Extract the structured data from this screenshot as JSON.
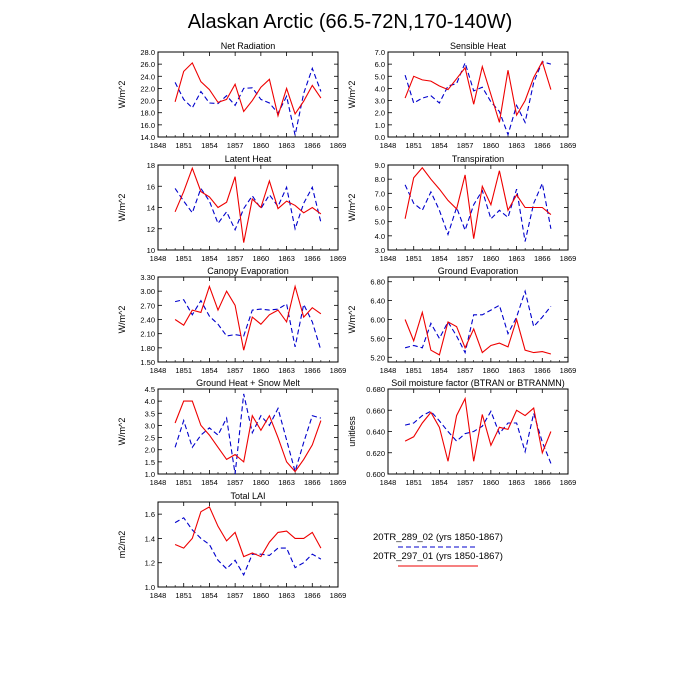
{
  "page_title": "Alaskan Arctic (66.5-72N,170-140W)",
  "colors": {
    "series1": "#0000cc",
    "series2": "#ee0000"
  },
  "legend": {
    "items": [
      {
        "label": "20TR_289_02 (yrs 1850-1867)",
        "color": "#0000cc",
        "dash": true
      },
      {
        "label": "20TR_297_01 (yrs 1850-1867)",
        "color": "#ee0000",
        "dash": false
      }
    ]
  },
  "chart_data": [
    {
      "type": "line",
      "title": "Net Radiation",
      "ylabel": "W/m^2",
      "xlim": [
        1848,
        1869
      ],
      "ylim": [
        14,
        28
      ],
      "xticks": [
        "1848",
        "1851",
        "1854",
        "1857",
        "1860",
        "1863",
        "1866",
        "1869"
      ],
      "yticks": [
        "14.0",
        "16.0",
        "18.0",
        "20.0",
        "22.0",
        "24.0",
        "26.0",
        "28.0"
      ],
      "x": [
        1850,
        1851,
        1852,
        1853,
        1854,
        1855,
        1856,
        1857,
        1858,
        1859,
        1860,
        1861,
        1862,
        1863,
        1864,
        1865,
        1866,
        1867
      ],
      "series": [
        {
          "values": [
            23.0,
            20.2,
            18.8,
            21.5,
            19.6,
            19.5,
            20.8,
            19.2,
            22.0,
            22.1,
            20.2,
            19.6,
            17.9,
            20.7,
            14.3,
            21.2,
            25.3,
            21.5
          ]
        },
        {
          "values": [
            19.8,
            24.8,
            26.2,
            23.1,
            21.8,
            19.7,
            20.2,
            22.7,
            18.2,
            20.0,
            22.2,
            23.5,
            17.5,
            22.0,
            17.8,
            19.9,
            22.5,
            20.4
          ]
        }
      ]
    },
    {
      "type": "line",
      "title": "Sensible Heat",
      "ylabel": "W/m^2",
      "xlim": [
        1848,
        1869
      ],
      "ylim": [
        0,
        7
      ],
      "xticks": [
        "1848",
        "1851",
        "1854",
        "1857",
        "1860",
        "1863",
        "1866",
        "1869"
      ],
      "yticks": [
        "0.0",
        "1.0",
        "2.0",
        "3.0",
        "4.0",
        "5.0",
        "6.0",
        "7.0"
      ],
      "x": [
        1850,
        1851,
        1852,
        1853,
        1854,
        1855,
        1856,
        1857,
        1858,
        1859,
        1860,
        1861,
        1862,
        1863,
        1864,
        1865,
        1866,
        1867
      ],
      "series": [
        {
          "values": [
            5.1,
            2.8,
            3.2,
            3.4,
            2.8,
            4.2,
            4.4,
            6.1,
            3.8,
            4.1,
            2.9,
            2.1,
            0.2,
            2.6,
            1.2,
            4.5,
            6.2,
            6.0
          ]
        },
        {
          "values": [
            3.2,
            5.0,
            4.7,
            4.6,
            4.2,
            3.9,
            4.8,
            5.7,
            2.7,
            5.8,
            3.5,
            1.2,
            5.5,
            1.8,
            3.0,
            4.9,
            6.2,
            3.9
          ]
        }
      ]
    },
    {
      "type": "line",
      "title": "Latent Heat",
      "ylabel": "W/m^2",
      "xlim": [
        1848,
        1869
      ],
      "ylim": [
        10,
        18
      ],
      "xticks": [
        "1848",
        "1851",
        "1854",
        "1857",
        "1860",
        "1863",
        "1866",
        "1869"
      ],
      "yticks": [
        "10",
        "12",
        "14",
        "16",
        "18"
      ],
      "x": [
        1850,
        1851,
        1852,
        1853,
        1854,
        1855,
        1856,
        1857,
        1858,
        1859,
        1860,
        1861,
        1862,
        1863,
        1864,
        1865,
        1866,
        1867
      ],
      "series": [
        {
          "values": [
            15.8,
            14.6,
            13.5,
            15.8,
            14.6,
            12.5,
            13.6,
            11.9,
            13.9,
            15.1,
            13.9,
            15.2,
            14.1,
            15.9,
            12.0,
            14.4,
            15.9,
            12.6
          ]
        },
        {
          "values": [
            13.6,
            15.5,
            17.7,
            15.5,
            15.0,
            14.0,
            14.5,
            16.9,
            10.7,
            14.8,
            14.0,
            16.5,
            13.9,
            14.6,
            14.2,
            13.5,
            14.0,
            13.4
          ]
        }
      ]
    },
    {
      "type": "line",
      "title": "Transpiration",
      "ylabel": "W/m^2",
      "xlim": [
        1848,
        1869
      ],
      "ylim": [
        3,
        9
      ],
      "xticks": [
        "1848",
        "1851",
        "1854",
        "1857",
        "1860",
        "1863",
        "1866",
        "1869"
      ],
      "yticks": [
        "3.0",
        "4.0",
        "5.0",
        "6.0",
        "7.0",
        "8.0",
        "9.0"
      ],
      "x": [
        1850,
        1851,
        1852,
        1853,
        1854,
        1855,
        1856,
        1857,
        1858,
        1859,
        1860,
        1861,
        1862,
        1863,
        1864,
        1865,
        1866,
        1867
      ],
      "series": [
        {
          "values": [
            7.6,
            6.3,
            5.8,
            7.1,
            5.8,
            4.1,
            6.0,
            4.4,
            6.2,
            7.2,
            5.2,
            5.8,
            5.3,
            7.3,
            3.6,
            6.3,
            7.7,
            4.5
          ]
        },
        {
          "values": [
            5.2,
            8.1,
            8.8,
            8.0,
            7.3,
            6.5,
            5.9,
            8.3,
            3.8,
            7.5,
            6.2,
            8.6,
            5.8,
            6.9,
            6.0,
            6.0,
            6.0,
            5.5
          ]
        }
      ]
    },
    {
      "type": "line",
      "title": "Canopy Evaporation",
      "ylabel": "W/m^2",
      "xlim": [
        1848,
        1869
      ],
      "ylim": [
        1.5,
        3.3
      ],
      "xticks": [
        "1848",
        "1851",
        "1854",
        "1857",
        "1860",
        "1863",
        "1866",
        "1869"
      ],
      "yticks": [
        "1.50",
        "1.80",
        "2.10",
        "2.40",
        "2.70",
        "3.00",
        "3.30"
      ],
      "x": [
        1850,
        1851,
        1852,
        1853,
        1854,
        1855,
        1856,
        1857,
        1858,
        1859,
        1860,
        1861,
        1862,
        1863,
        1864,
        1865,
        1866,
        1867
      ],
      "series": [
        {
          "values": [
            2.78,
            2.82,
            2.5,
            2.8,
            2.47,
            2.3,
            2.05,
            2.08,
            2.05,
            2.6,
            2.62,
            2.6,
            2.62,
            2.73,
            1.82,
            2.72,
            2.35,
            1.75
          ]
        },
        {
          "values": [
            2.4,
            2.28,
            2.6,
            2.55,
            3.1,
            2.6,
            3.0,
            2.7,
            1.75,
            2.45,
            2.3,
            2.5,
            2.6,
            2.35,
            3.1,
            2.45,
            2.65,
            2.52
          ]
        }
      ]
    },
    {
      "type": "line",
      "title": "Ground Evaporation",
      "ylabel": "W/m^2",
      "xlim": [
        1848,
        1869
      ],
      "ylim": [
        5.1,
        6.9
      ],
      "xticks": [
        "1848",
        "1851",
        "1854",
        "1857",
        "1860",
        "1863",
        "1866",
        "1869"
      ],
      "yticks": [
        "5.20",
        "5.60",
        "6.00",
        "6.40",
        "6.80"
      ],
      "x": [
        1850,
        1851,
        1852,
        1853,
        1854,
        1855,
        1856,
        1857,
        1858,
        1859,
        1860,
        1861,
        1862,
        1863,
        1864,
        1865,
        1866,
        1867
      ],
      "series": [
        {
          "values": [
            5.4,
            5.45,
            5.4,
            5.92,
            5.6,
            5.95,
            5.65,
            5.3,
            6.1,
            6.1,
            6.2,
            6.3,
            5.7,
            6.05,
            6.6,
            5.85,
            6.05,
            6.28
          ]
        },
        {
          "values": [
            6.0,
            5.55,
            6.15,
            5.35,
            5.25,
            5.95,
            5.85,
            5.4,
            5.8,
            5.3,
            5.45,
            5.5,
            5.42,
            6.0,
            5.35,
            5.3,
            5.32,
            5.27
          ]
        }
      ]
    },
    {
      "type": "line",
      "title": "Ground Heat + Snow Melt",
      "ylabel": "W/m^2",
      "xlim": [
        1848,
        1869
      ],
      "ylim": [
        1.0,
        4.5
      ],
      "xticks": [
        "1848",
        "1851",
        "1854",
        "1857",
        "1860",
        "1863",
        "1866",
        "1869"
      ],
      "yticks": [
        "1.0",
        "1.5",
        "2.0",
        "2.5",
        "3.0",
        "3.5",
        "4.0",
        "4.5"
      ],
      "x": [
        1850,
        1851,
        1852,
        1853,
        1854,
        1855,
        1856,
        1857,
        1858,
        1859,
        1860,
        1861,
        1862,
        1863,
        1864,
        1865,
        1866,
        1867
      ],
      "series": [
        {
          "values": [
            2.1,
            3.2,
            2.1,
            2.6,
            2.9,
            2.6,
            3.3,
            1.0,
            4.3,
            2.7,
            3.4,
            3.0,
            3.7,
            2.4,
            1.1,
            2.3,
            3.4,
            3.3
          ]
        },
        {
          "values": [
            3.1,
            4.0,
            4.0,
            3.0,
            2.6,
            2.1,
            1.6,
            1.8,
            1.5,
            3.4,
            2.8,
            3.4,
            2.5,
            1.5,
            1.1,
            1.6,
            2.2,
            3.2
          ]
        }
      ]
    },
    {
      "type": "line",
      "title": "Soil moisture factor (BTRAN or BTRANMN)",
      "ylabel": "unitless",
      "xlim": [
        1848,
        1869
      ],
      "ylim": [
        0.6,
        0.68
      ],
      "xticks": [
        "1848",
        "1851",
        "1854",
        "1857",
        "1860",
        "1863",
        "1866",
        "1869"
      ],
      "yticks": [
        "0.600",
        "0.620",
        "0.640",
        "0.660",
        "0.680"
      ],
      "x": [
        1850,
        1851,
        1852,
        1853,
        1854,
        1855,
        1856,
        1857,
        1858,
        1859,
        1860,
        1861,
        1862,
        1863,
        1864,
        1865,
        1866,
        1867
      ],
      "series": [
        {
          "values": [
            0.646,
            0.648,
            0.655,
            0.659,
            0.65,
            0.64,
            0.631,
            0.638,
            0.64,
            0.645,
            0.659,
            0.638,
            0.648,
            0.648,
            0.621,
            0.657,
            0.63,
            0.61
          ]
        },
        {
          "values": [
            0.631,
            0.635,
            0.648,
            0.658,
            0.644,
            0.612,
            0.655,
            0.671,
            0.612,
            0.656,
            0.627,
            0.644,
            0.642,
            0.66,
            0.655,
            0.662,
            0.62,
            0.64
          ]
        }
      ]
    },
    {
      "type": "line",
      "title": "Total LAI",
      "ylabel": "m2/m2",
      "xlim": [
        1848,
        1869
      ],
      "ylim": [
        1.0,
        1.7
      ],
      "xticks": [
        "1848",
        "1851",
        "1854",
        "1857",
        "1860",
        "1863",
        "1866",
        "1869"
      ],
      "yticks": [
        "1.0",
        "1.2",
        "1.4",
        "1.6"
      ],
      "x": [
        1850,
        1851,
        1852,
        1853,
        1854,
        1855,
        1856,
        1857,
        1858,
        1859,
        1860,
        1861,
        1862,
        1863,
        1864,
        1865,
        1866,
        1867
      ],
      "series": [
        {
          "values": [
            1.53,
            1.57,
            1.47,
            1.4,
            1.35,
            1.22,
            1.15,
            1.22,
            1.1,
            1.27,
            1.27,
            1.26,
            1.32,
            1.32,
            1.16,
            1.2,
            1.27,
            1.23
          ]
        },
        {
          "values": [
            1.35,
            1.32,
            1.4,
            1.62,
            1.66,
            1.5,
            1.38,
            1.45,
            1.25,
            1.28,
            1.25,
            1.37,
            1.45,
            1.46,
            1.4,
            1.4,
            1.45,
            1.32
          ]
        }
      ]
    }
  ]
}
